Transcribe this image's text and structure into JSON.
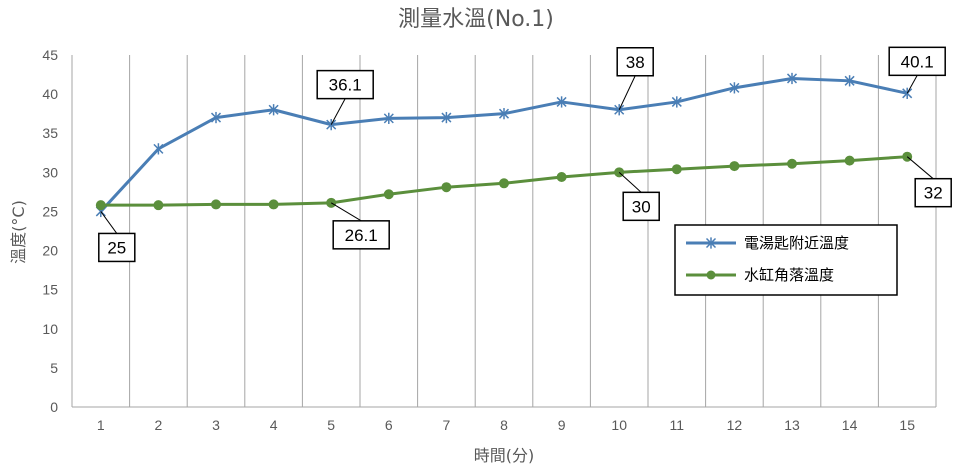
{
  "chart_data": {
    "type": "line",
    "title": "測量水溫(No.1)",
    "xlabel": "時間(分)",
    "ylabel": "溫度(°C)",
    "ylim": [
      0,
      45
    ],
    "yticks": [
      0,
      5,
      10,
      15,
      20,
      25,
      30,
      35,
      40,
      45
    ],
    "x": [
      1,
      2,
      3,
      4,
      5,
      6,
      7,
      8,
      9,
      10,
      11,
      12,
      13,
      14,
      15
    ],
    "grid": "vertical",
    "legend_position": "lower-right inside plot",
    "series": [
      {
        "name": "電湯匙附近溫度",
        "color": "#4a7eb5",
        "marker": "asterisk",
        "values": [
          25,
          33,
          37,
          38,
          36.1,
          36.9,
          37,
          37.5,
          39,
          38,
          39,
          40.8,
          42,
          41.7,
          40.1
        ]
      },
      {
        "name": "水缸角落溫度",
        "color": "#5b8f3c",
        "marker": "circle",
        "values": [
          25.8,
          25.8,
          25.9,
          25.9,
          26.1,
          27.2,
          28.1,
          28.6,
          29.4,
          30,
          30.4,
          30.8,
          31.1,
          31.5,
          32
        ]
      }
    ],
    "annotations": [
      {
        "text": "25",
        "series": 0,
        "index": 0
      },
      {
        "text": "36.1",
        "series": 0,
        "index": 4
      },
      {
        "text": "38",
        "series": 0,
        "index": 9
      },
      {
        "text": "40.1",
        "series": 0,
        "index": 14
      },
      {
        "text": "26.1",
        "series": 1,
        "index": 4
      },
      {
        "text": "30",
        "series": 1,
        "index": 9
      },
      {
        "text": "32",
        "series": 1,
        "index": 14
      }
    ]
  }
}
